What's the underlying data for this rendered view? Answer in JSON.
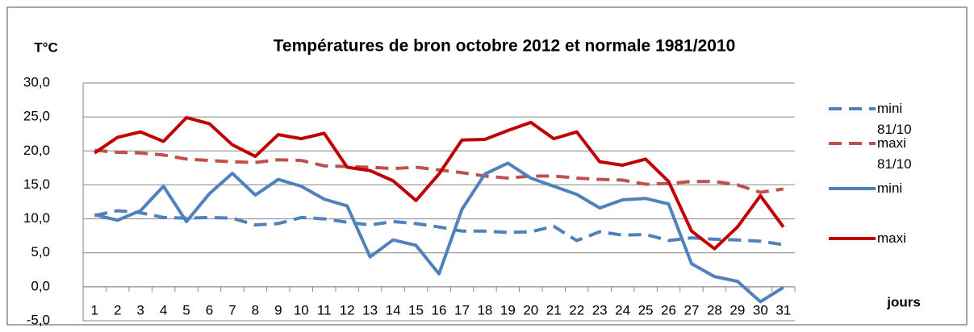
{
  "chart_data": {
    "type": "line",
    "title": "Températures de bron  octobre 2012 et normale 1981/2010",
    "y_label": "T°C",
    "x_label": "jours",
    "categories": [
      "1",
      "2",
      "3",
      "4",
      "5",
      "6",
      "7",
      "8",
      "9",
      "10",
      "11",
      "12",
      "13",
      "14",
      "15",
      "16",
      "17",
      "18",
      "19",
      "20",
      "21",
      "22",
      "23",
      "24",
      "25",
      "26",
      "27",
      "28",
      "29",
      "30",
      "31"
    ],
    "series": [
      {
        "name": "mini 81/10",
        "color": "#4f81bd",
        "dashed": true,
        "values": [
          10.5,
          11.2,
          10.9,
          10.2,
          10.1,
          10.2,
          10.1,
          9.1,
          9.3,
          10.2,
          10.0,
          9.5,
          9.1,
          9.6,
          9.3,
          8.8,
          8.2,
          8.2,
          8.0,
          8.1,
          8.9,
          6.8,
          8.1,
          7.6,
          7.7,
          6.8,
          7.2,
          7.0,
          6.9,
          6.7,
          6.2
        ]
      },
      {
        "name": "maxi 81/10",
        "color": "#c0504d",
        "dashed": true,
        "values": [
          20.1,
          19.8,
          19.7,
          19.4,
          18.8,
          18.6,
          18.4,
          18.3,
          18.7,
          18.6,
          17.8,
          17.7,
          17.6,
          17.4,
          17.6,
          17.2,
          16.8,
          16.3,
          16.0,
          16.3,
          16.3,
          16.0,
          15.8,
          15.7,
          15.1,
          15.2,
          15.5,
          15.5,
          15.0,
          13.9,
          14.4
        ]
      },
      {
        "name": "mini",
        "color": "#4f81bd",
        "dashed": false,
        "values": [
          10.6,
          9.8,
          11.2,
          14.8,
          9.6,
          13.7,
          16.7,
          13.5,
          15.8,
          14.8,
          12.9,
          11.9,
          4.4,
          6.9,
          6.1,
          1.9,
          11.4,
          16.6,
          18.2,
          16.0,
          14.8,
          13.6,
          11.6,
          12.8,
          13.0,
          12.2,
          3.4,
          1.5,
          0.8,
          -2.2,
          -0.1
        ]
      },
      {
        "name": "maxi",
        "color": "#c00000",
        "dashed": false,
        "values": [
          19.7,
          22.0,
          22.8,
          21.4,
          24.9,
          24.0,
          20.9,
          19.2,
          22.4,
          21.8,
          22.6,
          17.6,
          17.1,
          15.6,
          12.7,
          16.6,
          21.6,
          21.7,
          23.0,
          24.2,
          21.8,
          22.8,
          18.4,
          17.9,
          18.8,
          15.5,
          8.2,
          5.6,
          8.8,
          13.4,
          8.8
        ]
      }
    ],
    "ylim": [
      -5,
      30
    ],
    "yticks": [
      {
        "value": -5,
        "label": "-5,0"
      },
      {
        "value": 0,
        "label": "0,0"
      },
      {
        "value": 5,
        "label": "5,0"
      },
      {
        "value": 10,
        "label": "10,0"
      },
      {
        "value": 15,
        "label": "15,0"
      },
      {
        "value": 20,
        "label": "20,0"
      },
      {
        "value": 25,
        "label": "25,0"
      },
      {
        "value": 30,
        "label": "30,0"
      }
    ],
    "grid": true,
    "legend": "right"
  }
}
